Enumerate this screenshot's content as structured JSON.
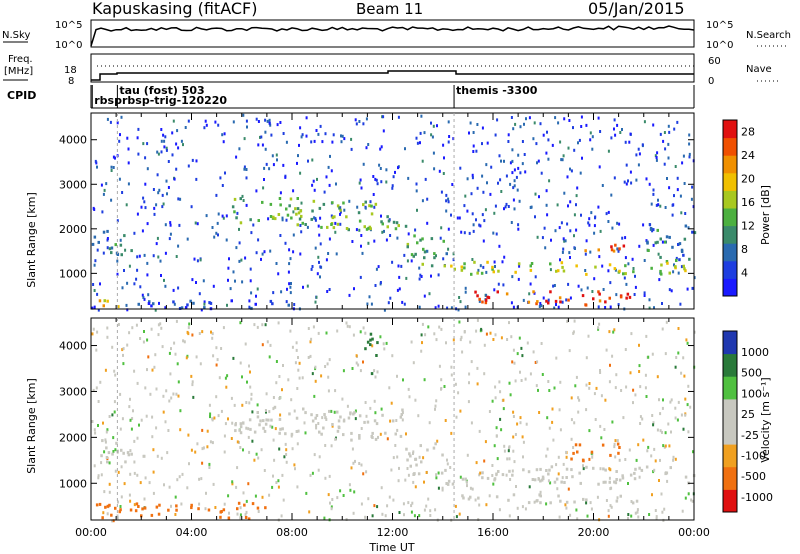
{
  "header": {
    "station": "Kapuskasing (fitACF)",
    "beam": "Beam 11",
    "date": "05/Jan/2015"
  },
  "top_panels": {
    "nsky_label": "N.Sky",
    "nsky_ticks": [
      "10^5",
      "10^0"
    ],
    "nsearch_label": "N.Search",
    "nsearch_ticks": [
      "10^5",
      "10^0"
    ],
    "freq_label_1": "Freq.",
    "freq_label_2": "[MHz]",
    "freq_ticks": [
      "18",
      "8"
    ],
    "nave_label": "Nave",
    "nave_ticks": [
      "60",
      "0"
    ],
    "cpid_label": "CPID",
    "cpid_entries": [
      {
        "text": "tau (fost) 503",
        "t": 1.05
      },
      {
        "text": "rbsprbsp-trig-120220",
        "t": 0.05
      },
      {
        "text": "themis -3300",
        "t": 14.45
      }
    ]
  },
  "chart_data": [
    {
      "type": "heatmap",
      "panel": "power",
      "ylabel": "Slant Range [km]",
      "yticks": [
        "1000",
        "2000",
        "3000",
        "4000"
      ],
      "ylim": [
        200,
        4600
      ],
      "xlim": [
        0,
        24
      ],
      "colorbar_label": "Power [dB]",
      "colorbar_ticks": [
        "4",
        "8",
        "12",
        "16",
        "20",
        "24",
        "28"
      ],
      "colorbar_range": [
        0,
        30
      ],
      "bands": [
        {
          "t0": 0.0,
          "t1": 1.6,
          "r0": 1450,
          "r1": 2000,
          "v": 10
        },
        {
          "t0": 0.0,
          "t1": 1.2,
          "r0": 280,
          "r1": 520,
          "v": 20
        },
        {
          "t0": 1.2,
          "t1": 8.0,
          "r0": 230,
          "r1": 420,
          "v": 5
        },
        {
          "t0": 5.6,
          "t1": 9.0,
          "r0": 2100,
          "r1": 2750,
          "v": 14
        },
        {
          "t0": 9.0,
          "t1": 12.5,
          "r0": 1950,
          "r1": 2650,
          "v": 14
        },
        {
          "t0": 12.5,
          "t1": 14.2,
          "r0": 1200,
          "r1": 1900,
          "v": 12
        },
        {
          "t0": 14.0,
          "t1": 24.0,
          "r0": 1000,
          "r1": 1300,
          "v": 16
        },
        {
          "t0": 14.6,
          "t1": 21.5,
          "r0": 320,
          "r1": 620,
          "v": 27
        },
        {
          "t0": 19.5,
          "t1": 21.3,
          "r0": 1500,
          "r1": 1750,
          "v": 25
        },
        {
          "t0": 22.0,
          "t1": 24.0,
          "r0": 1300,
          "r1": 2100,
          "v": 9
        }
      ]
    },
    {
      "type": "heatmap",
      "panel": "velocity",
      "ylabel": "Slant Range [km]",
      "yticks": [
        "1000",
        "2000",
        "3000",
        "4000"
      ],
      "ylim": [
        200,
        4600
      ],
      "xlim": [
        0,
        24
      ],
      "xlabel": "Time UT",
      "xticks": [
        "00:00",
        "04:00",
        "08:00",
        "12:00",
        "16:00",
        "20:00",
        "00:00"
      ],
      "colorbar_label": "Velocity [m s⁻¹]",
      "colorbar_ticks": [
        "1000",
        "500",
        "100",
        "25",
        "-25",
        "-100",
        "-500",
        "-1000"
      ],
      "bands": [
        {
          "t0": 0.0,
          "t1": 1.6,
          "r0": 1450,
          "r1": 2000,
          "v": 0
        },
        {
          "t0": 0.0,
          "t1": 7.0,
          "r0": 250,
          "r1": 600,
          "v": -150
        },
        {
          "t0": 5.6,
          "t1": 9.0,
          "r0": 2100,
          "r1": 2750,
          "v": 0
        },
        {
          "t0": 9.0,
          "t1": 12.5,
          "r0": 1950,
          "r1": 2650,
          "v": 0
        },
        {
          "t0": 12.5,
          "t1": 14.2,
          "r0": 1200,
          "r1": 1900,
          "v": 0
        },
        {
          "t0": 14.0,
          "t1": 24.0,
          "r0": 1000,
          "r1": 1400,
          "v": 0
        },
        {
          "t0": 14.6,
          "t1": 22.0,
          "r0": 600,
          "r1": 800,
          "v": 0
        },
        {
          "t0": 19.0,
          "t1": 21.0,
          "r0": 1500,
          "r1": 1900,
          "v": -200
        },
        {
          "t0": 10.8,
          "t1": 11.4,
          "r0": 3400,
          "r1": 4300,
          "v": 200
        }
      ]
    }
  ]
}
